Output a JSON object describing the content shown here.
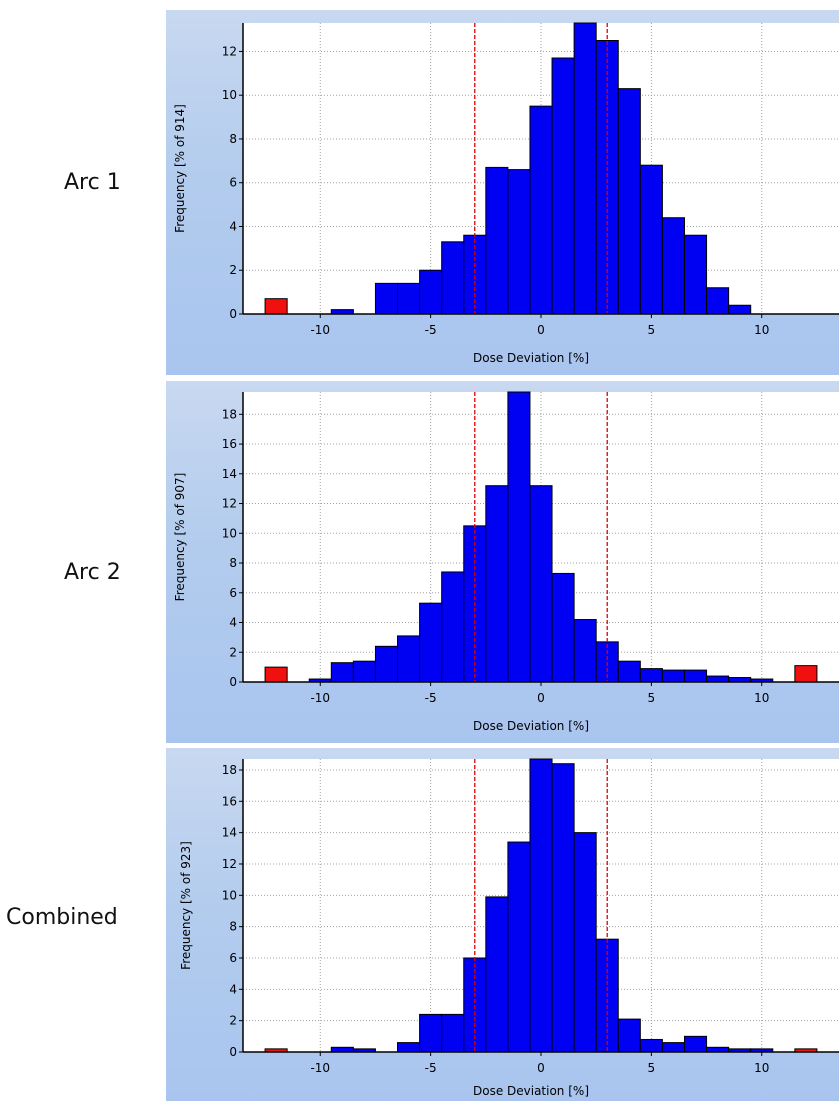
{
  "rows": [
    {
      "label": "Arc 1"
    },
    {
      "label": "Arc 2"
    },
    {
      "label": "Combined"
    }
  ],
  "colors": {
    "bar": "#0000f2",
    "outlier_bar": "#f01010",
    "threshold_line": "#e00000",
    "grid": "#a0a0a0",
    "plot_background": "#ffffff"
  },
  "chart_data": [
    {
      "type": "bar",
      "xlabel": "Dose Deviation [%]",
      "ylabel": "Frequency [% of 914]",
      "xlim": [
        -13.5,
        13.5
      ],
      "ylim": [
        0,
        13.3
      ],
      "xticks": [
        -10,
        -5,
        0,
        5,
        10
      ],
      "yticks": [
        0,
        2,
        4,
        6,
        8,
        10,
        12
      ],
      "grid": true,
      "threshold_lines": [
        -3,
        3
      ],
      "bin_width": 1,
      "bins": [
        {
          "x": -12,
          "y": 0.7,
          "outlier": true
        },
        {
          "x": -11,
          "y": 0
        },
        {
          "x": -10,
          "y": 0
        },
        {
          "x": -9,
          "y": 0.2
        },
        {
          "x": -8,
          "y": 0
        },
        {
          "x": -7,
          "y": 1.4
        },
        {
          "x": -6,
          "y": 1.4
        },
        {
          "x": -5,
          "y": 2.0
        },
        {
          "x": -4,
          "y": 3.3
        },
        {
          "x": -3,
          "y": 3.6
        },
        {
          "x": -2,
          "y": 6.7
        },
        {
          "x": -1,
          "y": 6.6
        },
        {
          "x": 0,
          "y": 9.5
        },
        {
          "x": 1,
          "y": 11.7
        },
        {
          "x": 2,
          "y": 13.3
        },
        {
          "x": 3,
          "y": 12.5
        },
        {
          "x": 4,
          "y": 10.3
        },
        {
          "x": 5,
          "y": 6.8
        },
        {
          "x": 6,
          "y": 4.4
        },
        {
          "x": 7,
          "y": 3.6
        },
        {
          "x": 8,
          "y": 1.2
        },
        {
          "x": 9,
          "y": 0.4
        },
        {
          "x": 10,
          "y": 0
        },
        {
          "x": 11,
          "y": 0
        },
        {
          "x": 12,
          "y": 0
        }
      ]
    },
    {
      "type": "bar",
      "xlabel": "Dose Deviation [%]",
      "ylabel": "Frequency [% of 907]",
      "xlim": [
        -13.5,
        13.5
      ],
      "ylim": [
        0,
        19.5
      ],
      "xticks": [
        -10,
        -5,
        0,
        5,
        10
      ],
      "yticks": [
        0,
        2,
        4,
        6,
        8,
        10,
        12,
        14,
        16,
        18
      ],
      "grid": true,
      "threshold_lines": [
        -3,
        3
      ],
      "bin_width": 1,
      "bins": [
        {
          "x": -12,
          "y": 1.0,
          "outlier": true
        },
        {
          "x": -11,
          "y": 0
        },
        {
          "x": -10,
          "y": 0.2
        },
        {
          "x": -9,
          "y": 1.3
        },
        {
          "x": -8,
          "y": 1.4
        },
        {
          "x": -7,
          "y": 2.4
        },
        {
          "x": -6,
          "y": 3.1
        },
        {
          "x": -5,
          "y": 5.3
        },
        {
          "x": -4,
          "y": 7.4
        },
        {
          "x": -3,
          "y": 10.5
        },
        {
          "x": -2,
          "y": 13.2
        },
        {
          "x": -1,
          "y": 19.5
        },
        {
          "x": 0,
          "y": 13.2
        },
        {
          "x": 1,
          "y": 7.3
        },
        {
          "x": 2,
          "y": 4.2
        },
        {
          "x": 3,
          "y": 2.7
        },
        {
          "x": 4,
          "y": 1.4
        },
        {
          "x": 5,
          "y": 0.9
        },
        {
          "x": 6,
          "y": 0.8
        },
        {
          "x": 7,
          "y": 0.8
        },
        {
          "x": 8,
          "y": 0.4
        },
        {
          "x": 9,
          "y": 0.3
        },
        {
          "x": 10,
          "y": 0.2
        },
        {
          "x": 11,
          "y": 0
        },
        {
          "x": 12,
          "y": 1.1,
          "outlier": true
        }
      ]
    },
    {
      "type": "bar",
      "xlabel": "Dose Deviation [%]",
      "ylabel": "Frequency [% of 923]",
      "xlim": [
        -13.5,
        13.5
      ],
      "ylim": [
        0,
        18.7
      ],
      "xticks": [
        -10,
        -5,
        0,
        5,
        10
      ],
      "yticks": [
        0,
        2,
        4,
        6,
        8,
        10,
        12,
        14,
        16,
        18
      ],
      "grid": true,
      "threshold_lines": [
        -3,
        3
      ],
      "bin_width": 1,
      "bins": [
        {
          "x": -12,
          "y": 0.2,
          "outlier": true
        },
        {
          "x": -11,
          "y": 0
        },
        {
          "x": -10,
          "y": 0
        },
        {
          "x": -9,
          "y": 0.3
        },
        {
          "x": -8,
          "y": 0.2
        },
        {
          "x": -7,
          "y": 0
        },
        {
          "x": -6,
          "y": 0.6
        },
        {
          "x": -5,
          "y": 2.4
        },
        {
          "x": -4,
          "y": 2.4
        },
        {
          "x": -3,
          "y": 6.0
        },
        {
          "x": -2,
          "y": 9.9
        },
        {
          "x": -1,
          "y": 13.4
        },
        {
          "x": 0,
          "y": 18.7
        },
        {
          "x": 1,
          "y": 18.4
        },
        {
          "x": 2,
          "y": 14.0
        },
        {
          "x": 3,
          "y": 7.2
        },
        {
          "x": 4,
          "y": 2.1
        },
        {
          "x": 5,
          "y": 0.8
        },
        {
          "x": 6,
          "y": 0.6
        },
        {
          "x": 7,
          "y": 1.0
        },
        {
          "x": 8,
          "y": 0.3
        },
        {
          "x": 9,
          "y": 0.2
        },
        {
          "x": 10,
          "y": 0.2
        },
        {
          "x": 11,
          "y": 0
        },
        {
          "x": 12,
          "y": 0.2,
          "outlier": true
        }
      ]
    }
  ]
}
